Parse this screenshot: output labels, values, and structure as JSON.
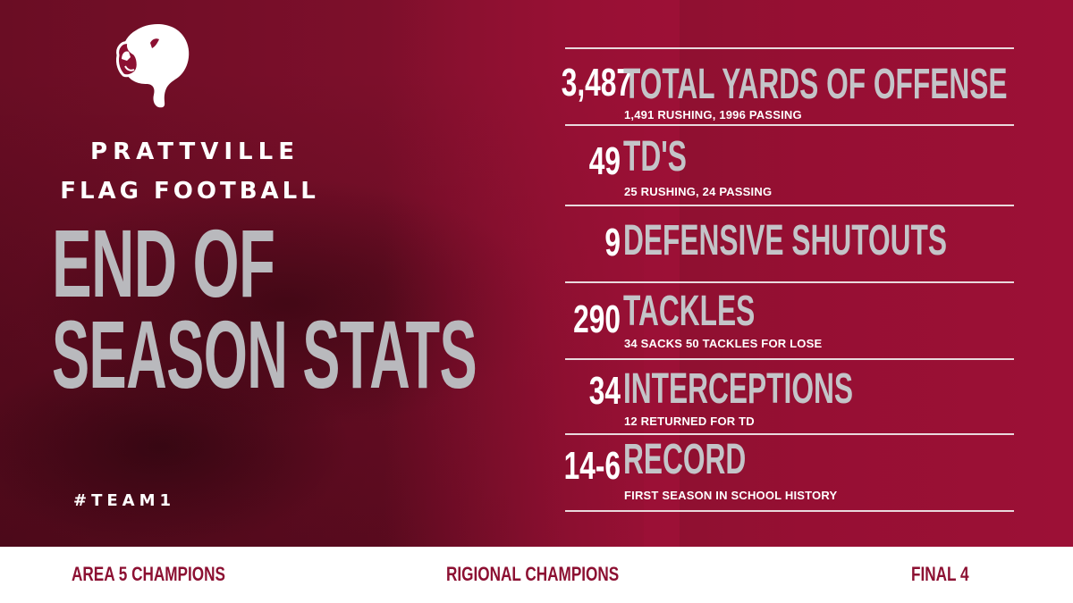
{
  "colors": {
    "primary": "#8c1032",
    "headline_gray": "#b9b9bd",
    "white": "#ffffff"
  },
  "school": {
    "line1": "PRATTVILLE",
    "line2": "FLAG FOOTBALL",
    "logo_icon": "lion-icon"
  },
  "headline": {
    "line1": "END OF",
    "line2": "SEASON STATS"
  },
  "hashtag": "#TEAM1",
  "stats": [
    {
      "value": "3,487",
      "label": "TOTAL YARDS OF OFFENSE",
      "detail": "1,491 RUSHING, 1996 PASSING"
    },
    {
      "value": "49",
      "label": "TD'S",
      "detail": "25 RUSHING, 24 PASSING"
    },
    {
      "value": "9",
      "label": "DEFENSIVE SHUTOUTS",
      "detail": ""
    },
    {
      "value": "290",
      "label": "TACKLES",
      "detail": "34 SACKS 50 TACKLES FOR LOSE"
    },
    {
      "value": "34",
      "label": "INTERCEPTIONS",
      "detail": "12 RETURNED FOR TD"
    },
    {
      "value": "14-6",
      "label": "RECORD",
      "detail": "FIRST SEASON IN SCHOOL HISTORY"
    }
  ],
  "footer": {
    "left": "AREA 5 CHAMPIONS",
    "center": "RIGIONAL CHAMPIONS",
    "right": "FINAL 4"
  }
}
